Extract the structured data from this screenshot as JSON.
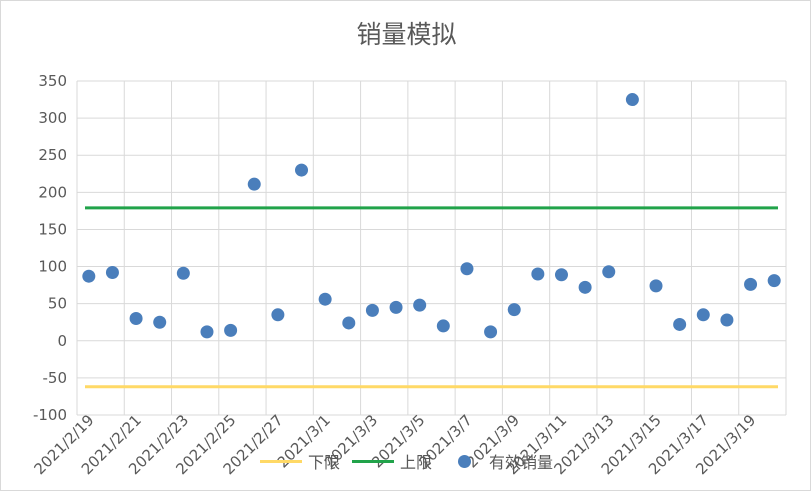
{
  "chart_data": {
    "type": "scatter",
    "title": "销量模拟",
    "xlabel": "",
    "ylabel": "",
    "ylim": [
      -100,
      350
    ],
    "yticks": [
      -100,
      -50,
      0,
      50,
      100,
      150,
      200,
      250,
      300,
      350
    ],
    "x": [
      "2021/2/19",
      "2021/2/20",
      "2021/2/21",
      "2021/2/22",
      "2021/2/23",
      "2021/2/24",
      "2021/2/25",
      "2021/2/26",
      "2021/2/27",
      "2021/2/28",
      "2021/3/1",
      "2021/3/2",
      "2021/3/3",
      "2021/3/4",
      "2021/3/5",
      "2021/3/6",
      "2021/3/7",
      "2021/3/8",
      "2021/3/9",
      "2021/3/10",
      "2021/3/11",
      "2021/3/12",
      "2021/3/13",
      "2021/3/14",
      "2021/3/15",
      "2021/3/16",
      "2021/3/17",
      "2021/3/18",
      "2021/3/19",
      "2021/3/20"
    ],
    "xtick_labels": [
      "2021/2/19",
      "2021/2/21",
      "2021/2/23",
      "2021/2/25",
      "2021/2/27",
      "2021/3/1",
      "2021/3/3",
      "2021/3/5",
      "2021/3/7",
      "2021/3/9",
      "2021/3/11",
      "2021/3/13",
      "2021/3/15",
      "2021/3/17",
      "2021/3/19"
    ],
    "series": [
      {
        "name": "下限",
        "type": "line",
        "color": "#ffd966",
        "values": [
          -62,
          -62,
          -62,
          -62,
          -62,
          -62,
          -62,
          -62,
          -62,
          -62,
          -62,
          -62,
          -62,
          -62,
          -62,
          -62,
          -62,
          -62,
          -62,
          -62,
          -62,
          -62,
          -62,
          -62,
          -62,
          -62,
          -62,
          -62,
          -62,
          -62
        ]
      },
      {
        "name": "上限",
        "type": "line",
        "color": "#21a34a",
        "values": [
          179,
          179,
          179,
          179,
          179,
          179,
          179,
          179,
          179,
          179,
          179,
          179,
          179,
          179,
          179,
          179,
          179,
          179,
          179,
          179,
          179,
          179,
          179,
          179,
          179,
          179,
          179,
          179,
          179,
          179
        ]
      },
      {
        "name": "有效销量",
        "type": "scatter",
        "color": "#4a7ebb",
        "values": [
          87,
          92,
          30,
          25,
          91,
          12,
          14,
          211,
          35,
          230,
          56,
          24,
          41,
          45,
          48,
          20,
          97,
          12,
          42,
          90,
          89,
          72,
          93,
          325,
          74,
          22,
          35,
          28,
          76,
          81
        ]
      }
    ],
    "grid": true,
    "legend_position": "bottom"
  }
}
